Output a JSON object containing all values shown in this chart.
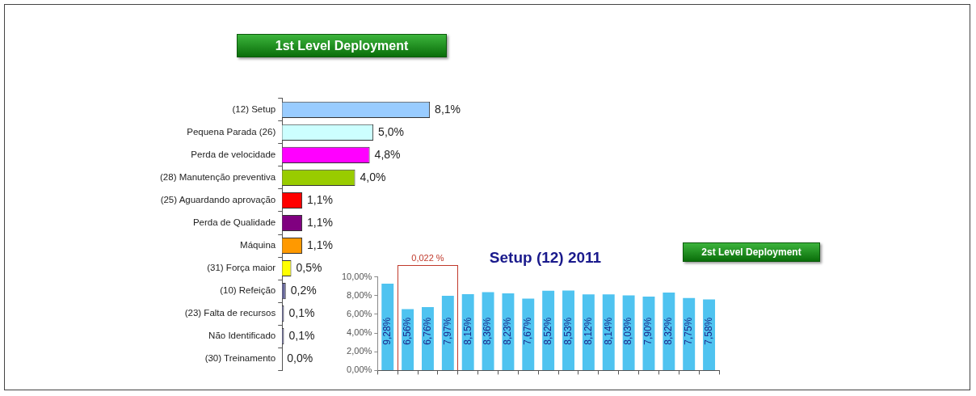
{
  "chart_data": [
    {
      "type": "bar",
      "orientation": "horizontal",
      "title": "1st Level Deployment",
      "categories": [
        "(12) Setup",
        "Pequena Parada (26)",
        "Perda de velocidade",
        "(28) Manutenção preventiva",
        "(25) Aguardando aprovação",
        "Perda de Qualidade",
        "Máquina",
        "(31) Força maior",
        "(10) Refeição",
        "(23) Falta de recursos",
        "Não Identificado",
        "(30) Treinamento"
      ],
      "values": [
        8.1,
        5.0,
        4.8,
        4.0,
        1.1,
        1.1,
        1.1,
        0.5,
        0.2,
        0.1,
        0.1,
        0.0
      ],
      "colors": [
        "#99ccff",
        "#ccffff",
        "#ff00ff",
        "#99cc00",
        "#ff0000",
        "#800080",
        "#ff9900",
        "#ffff00",
        "#666699",
        "#666699",
        "#666699",
        "#333366"
      ],
      "value_labels": [
        "8,1%",
        "5,0%",
        "4,8%",
        "4,0%",
        "1,1%",
        "1,1%",
        "1,1%",
        "0,5%",
        "0,2%",
        "0,1%",
        "0,1%",
        "0,0%"
      ],
      "tick_labels": "y"
    },
    {
      "type": "bar",
      "title": "Setup (12) 2011",
      "categories": [
        null,
        null,
        null,
        null,
        null,
        null,
        null,
        null,
        null,
        null,
        null,
        null,
        null,
        null,
        null,
        null,
        null
      ],
      "values": [
        9.28,
        6.56,
        6.76,
        7.97,
        8.15,
        8.36,
        8.23,
        7.67,
        8.52,
        8.53,
        8.12,
        8.14,
        8.03,
        7.9,
        8.32,
        7.75,
        7.58
      ],
      "color": "#4fc3f0",
      "value_labels": [
        "9,28%",
        "6,56%",
        "6,76%",
        "7,97%",
        "8,15%",
        "8,36%",
        "8,23%",
        "7,67%",
        "8,52%",
        "8,53%",
        "8,12%",
        "8,14%",
        "8,03%",
        "7,90%",
        "8,32%",
        "7,75%",
        "7,58%"
      ],
      "ylim": [
        0,
        10
      ],
      "yticks": [
        {
          "value": 0,
          "label": "0,00%"
        },
        {
          "value": 2,
          "label": "2,00%"
        },
        {
          "value": 4,
          "label": "4,00%"
        },
        {
          "value": 6,
          "label": "6,00%"
        },
        {
          "value": 8,
          "label": "8,00%"
        },
        {
          "value": 10,
          "label": "10,00%"
        }
      ],
      "annotations": [
        "0,022 %",
        "2st Level Deployment"
      ],
      "tick_labels": "y"
    }
  ]
}
